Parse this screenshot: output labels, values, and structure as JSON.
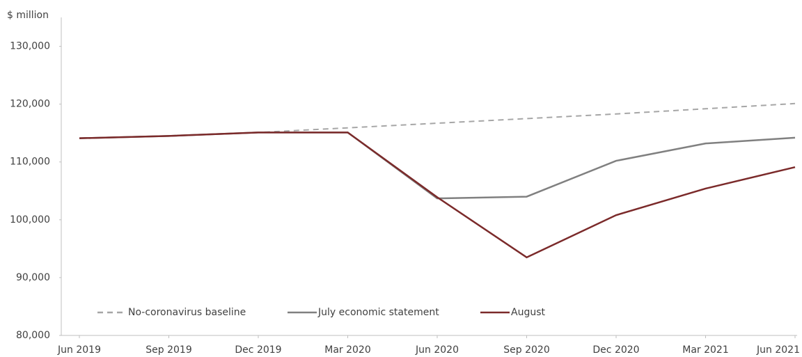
{
  "chart_data": {
    "type": "line",
    "y_unit_label": "$ million",
    "categories": [
      "Jun 2019",
      "Sep 2019",
      "Dec 2019",
      "Mar 2020",
      "Jun 2020",
      "Sep 2020",
      "Dec 2020",
      "Mar 2021",
      "Jun 2021"
    ],
    "series": [
      {
        "name": "No-coronavirus baseline",
        "color": "#a6a6a6",
        "style": "dashed",
        "values": [
          114100,
          114500,
          115100,
          115900,
          116700,
          117500,
          118300,
          119200,
          120100
        ]
      },
      {
        "name": "July economic statement",
        "color": "#808080",
        "style": "solid",
        "values": [
          114100,
          114500,
          115100,
          115100,
          103700,
          104000,
          110200,
          113200,
          114200
        ]
      },
      {
        "name": "August",
        "color": "#7b2a2a",
        "style": "solid",
        "values": [
          114100,
          114500,
          115100,
          115100,
          103900,
          93500,
          100800,
          105400,
          109100
        ]
      }
    ],
    "ylim": [
      80000,
      135000
    ],
    "yticks": [
      {
        "value": 80000,
        "label": "80,000"
      },
      {
        "value": 90000,
        "label": "90,000"
      },
      {
        "value": 100000,
        "label": "100,000"
      },
      {
        "value": 110000,
        "label": "110,000"
      },
      {
        "value": 120000,
        "label": "120,000"
      },
      {
        "value": 130000,
        "label": "130,000"
      }
    ],
    "grid": false,
    "legend_position": "bottom-left"
  }
}
